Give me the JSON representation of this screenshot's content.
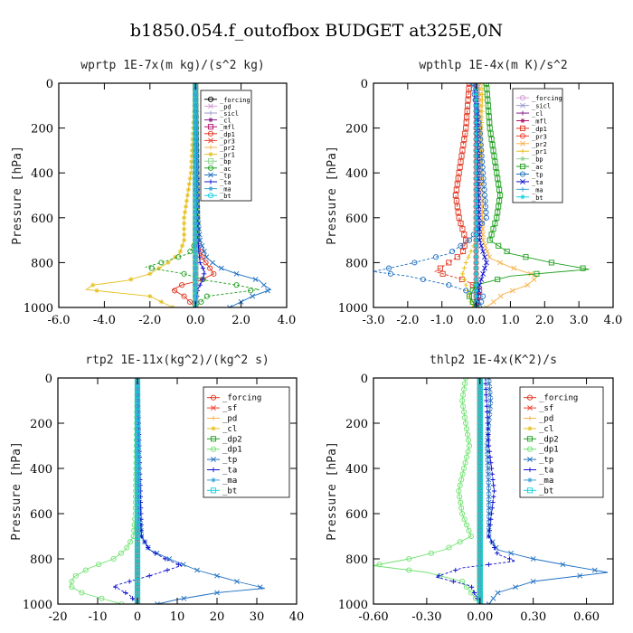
{
  "figure": {
    "title": "b1850.054.f_outofbox  BUDGET at325E,0N"
  },
  "chart_data": [
    {
      "type": "line",
      "title": "wprtp   1E-7x(m kg)/(s^2 kg)",
      "ylabel": "Pressure [hPa]",
      "xlim": [
        -6.0,
        4.0
      ],
      "ylim": [
        1000,
        0
      ],
      "y_reversed": true,
      "xticks": [
        "-6.0",
        "-4.0",
        "-2.0",
        "0.0",
        "2.0",
        "4.0"
      ],
      "xtick_values": [
        -6,
        -4,
        -2,
        0,
        2,
        4
      ],
      "yticks": [
        "0",
        "200",
        "400",
        "600",
        "800",
        "1000"
      ],
      "ytick_values": [
        0,
        200,
        400,
        600,
        800,
        1000
      ],
      "legend_position": "top-right",
      "series": [
        {
          "name": "_forcing",
          "color": "#000000",
          "y": [
            0,
            200,
            400,
            600,
            800,
            1000
          ],
          "values": [
            0,
            0,
            0,
            0,
            0,
            0
          ]
        },
        {
          "name": "_pd",
          "color": "#d59ad5",
          "y": [
            0,
            1000
          ],
          "values": [
            0,
            0
          ]
        },
        {
          "name": "_sicl",
          "color": "#9a9acd",
          "y": [
            0,
            1000
          ],
          "values": [
            0,
            0
          ]
        },
        {
          "name": "_cl",
          "color": "#8a1d8a",
          "y": [
            0,
            1000
          ],
          "values": [
            0,
            0
          ]
        },
        {
          "name": "_mfl",
          "color": "#b0176a",
          "y": [
            0,
            1000
          ],
          "values": [
            0,
            0
          ]
        },
        {
          "name": "_dp1",
          "color": "#e0341e",
          "y": [
            0,
            700,
            780,
            820,
            850,
            880,
            900,
            920,
            950,
            1000
          ],
          "values": [
            0,
            0.1,
            0.3,
            0.6,
            0.8,
            0.2,
            -0.6,
            -1.0,
            -0.5,
            0
          ]
        },
        {
          "name": "_pr3",
          "color": "#ee3e2e",
          "y": [
            0,
            1000
          ],
          "values": [
            0,
            0
          ]
        },
        {
          "name": "_pr2",
          "color": "#f7b24a",
          "y": [
            0,
            1000
          ],
          "values": [
            0,
            0
          ]
        },
        {
          "name": "_pr1",
          "color": "#e5c020",
          "y": [
            0,
            400,
            600,
            700,
            760,
            800,
            850,
            880,
            900,
            920,
            950,
            1000
          ],
          "values": [
            0,
            -0.2,
            -0.5,
            -0.5,
            -0.7,
            -1.2,
            -2.0,
            -3.0,
            -4.5,
            -4.8,
            -2.0,
            -1.0
          ]
        },
        {
          "name": "_bp",
          "color": "#8fd18f",
          "y": [
            0,
            1000
          ],
          "values": [
            0,
            0
          ]
        },
        {
          "name": "_ac",
          "color": "#1fa01f",
          "y": [
            0,
            700,
            760,
            800,
            820,
            850,
            880,
            900,
            920,
            950,
            1000
          ],
          "values": [
            0,
            0.1,
            -0.3,
            -1.5,
            -2.2,
            -0.5,
            0.5,
            1.8,
            2.8,
            0.5,
            0.0
          ]
        },
        {
          "name": "_tp",
          "color": "#1e6fc2",
          "y": [
            0,
            600,
            700,
            780,
            820,
            850,
            880,
            900,
            920,
            950,
            1000
          ],
          "values": [
            0,
            0.1,
            0.2,
            0.5,
            1.0,
            1.8,
            2.8,
            3.0,
            3.3,
            2.5,
            1.5
          ]
        },
        {
          "name": "_ta",
          "color": "#1010d0",
          "y": [
            0,
            700,
            800,
            840,
            880,
            920,
            1000
          ],
          "values": [
            0,
            0.1,
            0.2,
            0.4,
            0.3,
            0.1,
            0
          ]
        },
        {
          "name": "_ma",
          "color": "#3aa3d6",
          "y": [
            0,
            1000
          ],
          "values": [
            0,
            0
          ]
        },
        {
          "name": "_bt",
          "color": "#10d0e0",
          "y": [
            0,
            1000
          ],
          "values": [
            0,
            0
          ]
        }
      ]
    },
    {
      "type": "line",
      "title": "wpthlp   1E-4x(m K)/s^2",
      "ylabel": "Pressure [hPa]",
      "xlim": [
        -3.0,
        4.0
      ],
      "ylim": [
        1000,
        0
      ],
      "y_reversed": true,
      "xticks": [
        "-3.0",
        "-2.0",
        "-1.0",
        "0.0",
        "1.0",
        "2.0",
        "3.0",
        "4.0"
      ],
      "xtick_values": [
        -3,
        -2,
        -1,
        0,
        1,
        2,
        3,
        4
      ],
      "yticks": [
        "0",
        "200",
        "400",
        "600",
        "800",
        "1000"
      ],
      "ytick_values": [
        0,
        200,
        400,
        600,
        800,
        1000
      ],
      "legend_position": "top-right",
      "series": [
        {
          "name": "_forcing",
          "color": "#d59ad5",
          "y": [
            0,
            1000
          ],
          "values": [
            0,
            0
          ]
        },
        {
          "name": "_sicl",
          "color": "#9a9acd",
          "y": [
            0,
            1000
          ],
          "values": [
            0,
            0
          ]
        },
        {
          "name": "_cl",
          "color": "#8a1d8a",
          "y": [
            0,
            1000
          ],
          "values": [
            0,
            0
          ]
        },
        {
          "name": "_mfl",
          "color": "#b0176a",
          "y": [
            0,
            1000
          ],
          "values": [
            0,
            0
          ]
        },
        {
          "name": "_dp1",
          "color": "#e0341e",
          "y": [
            0,
            200,
            400,
            500,
            600,
            700,
            760,
            800,
            840,
            880,
            920,
            1000
          ],
          "values": [
            -0.2,
            -0.3,
            -0.5,
            -0.6,
            -0.5,
            -0.3,
            -0.4,
            -0.8,
            -1.2,
            -0.3,
            0.1,
            0.0
          ]
        },
        {
          "name": "_pr3",
          "color": "#ee3e2e",
          "y": [
            0,
            1000
          ],
          "values": [
            0,
            0
          ]
        },
        {
          "name": "_pr2",
          "color": "#f7b24a",
          "y": [
            0,
            700,
            780,
            820,
            860,
            900,
            940,
            1000
          ],
          "values": [
            0.1,
            0.2,
            0.4,
            1.0,
            1.8,
            1.5,
            0.8,
            0.3
          ]
        },
        {
          "name": "_pr1",
          "color": "#e5c020",
          "y": [
            0,
            400,
            700,
            800,
            850,
            900,
            1000
          ],
          "values": [
            0.2,
            0.1,
            0.0,
            -0.3,
            -0.4,
            -0.3,
            -0.1
          ]
        },
        {
          "name": "_bp",
          "color": "#8fd18f",
          "y": [
            0,
            1000
          ],
          "values": [
            0,
            0
          ]
        },
        {
          "name": "_ac",
          "color": "#1fa01f",
          "y": [
            0,
            200,
            400,
            500,
            600,
            700,
            760,
            800,
            830,
            860,
            900,
            950,
            1000
          ],
          "values": [
            0.3,
            0.4,
            0.6,
            0.7,
            0.6,
            0.4,
            1.0,
            2.2,
            3.3,
            1.0,
            0.0,
            -0.2,
            0.0
          ]
        },
        {
          "name": "_tp",
          "color": "#1e6fc2",
          "y": [
            0,
            200,
            400,
            600,
            700,
            760,
            800,
            840,
            860,
            900,
            950,
            1000
          ],
          "values": [
            -0.1,
            0.1,
            0.2,
            0.3,
            -0.2,
            -0.8,
            -1.8,
            -3.0,
            -2.0,
            -0.8,
            0.2,
            0.1
          ]
        },
        {
          "name": "_ta",
          "color": "#1010d0",
          "y": [
            0,
            700,
            800,
            850,
            900,
            1000
          ],
          "values": [
            0,
            0.1,
            0.3,
            0.2,
            0.1,
            0
          ]
        },
        {
          "name": "_ma",
          "color": "#3aa3d6",
          "y": [
            0,
            1000
          ],
          "values": [
            0,
            0
          ]
        },
        {
          "name": "_bt",
          "color": "#10d0e0",
          "y": [
            0,
            1000
          ],
          "values": [
            0,
            0
          ]
        }
      ]
    },
    {
      "type": "line",
      "title": "rtp2   1E-11x(kg^2)/(kg^2 s)",
      "ylabel": "Pressure [hPa]",
      "xlim": [
        -20,
        40
      ],
      "ylim": [
        1000,
        0
      ],
      "y_reversed": true,
      "xticks": [
        "-20",
        "-10",
        "0",
        "10",
        "20",
        "30",
        "40"
      ],
      "xtick_values": [
        -20,
        -10,
        0,
        10,
        20,
        30,
        40
      ],
      "yticks": [
        "0",
        "200",
        "400",
        "600",
        "800",
        "1000"
      ],
      "ytick_values": [
        0,
        200,
        400,
        600,
        800,
        1000
      ],
      "legend_position": "top-right",
      "series": [
        {
          "name": "_forcing",
          "color": "#e0341e",
          "y": [
            0,
            200,
            400,
            600,
            800,
            1000
          ],
          "values": [
            0,
            0,
            0,
            0,
            0,
            0
          ]
        },
        {
          "name": "_sf",
          "color": "#ee3e2e",
          "y": [
            0,
            1000
          ],
          "values": [
            0,
            0
          ]
        },
        {
          "name": "_pd",
          "color": "#f7b24a",
          "y": [
            0,
            1000
          ],
          "values": [
            0,
            0
          ]
        },
        {
          "name": "_cl",
          "color": "#e5c020",
          "y": [
            0,
            1000
          ],
          "values": [
            0,
            0
          ]
        },
        {
          "name": "_dp2",
          "color": "#1fa01f",
          "y": [
            0,
            1000
          ],
          "values": [
            0,
            0
          ]
        },
        {
          "name": "_dp1",
          "color": "#6ee26e",
          "y": [
            0,
            600,
            700,
            760,
            800,
            840,
            880,
            920,
            950,
            980,
            1000
          ],
          "values": [
            0,
            -0.5,
            -1.0,
            -3.0,
            -6.0,
            -12.0,
            -16.0,
            -17.0,
            -14.0,
            -8.0,
            -4.0
          ]
        },
        {
          "name": "_tp",
          "color": "#1e6fc2",
          "y": [
            0,
            600,
            700,
            760,
            800,
            850,
            900,
            930,
            950,
            980,
            1000
          ],
          "values": [
            0,
            0.5,
            1.0,
            3.0,
            8.0,
            15.0,
            25.0,
            32.0,
            20.0,
            10.0,
            5.0
          ]
        },
        {
          "name": "_ta",
          "color": "#1010d0",
          "y": [
            0,
            700,
            760,
            800,
            830,
            870,
            920,
            960,
            1000
          ],
          "values": [
            0,
            1.0,
            3.0,
            7.0,
            11.0,
            4.0,
            -6.0,
            -2.0,
            0.0
          ]
        },
        {
          "name": "_ma",
          "color": "#3aa3d6",
          "y": [
            0,
            1000
          ],
          "values": [
            0,
            0
          ]
        },
        {
          "name": "_bt",
          "color": "#10d0e0",
          "y": [
            0,
            1000
          ],
          "values": [
            0,
            0
          ]
        }
      ]
    },
    {
      "type": "line",
      "title": "thlp2   1E-4x(K^2)/s",
      "ylabel": "Pressure [hPa]",
      "xlim": [
        -0.6,
        0.75
      ],
      "ylim": [
        1000,
        0
      ],
      "y_reversed": true,
      "xticks": [
        "-0.60",
        "-0.30",
        "0.00",
        "0.30",
        "0.60"
      ],
      "xtick_values": [
        -0.6,
        -0.3,
        0.0,
        0.3,
        0.6
      ],
      "yticks": [
        "0",
        "200",
        "400",
        "600",
        "800",
        "1000"
      ],
      "ytick_values": [
        0,
        200,
        400,
        600,
        800,
        1000
      ],
      "legend_position": "top-right",
      "series": [
        {
          "name": "_forcing",
          "color": "#e0341e",
          "y": [
            0,
            200,
            400,
            600,
            800,
            1000
          ],
          "values": [
            0,
            0,
            0,
            0,
            0,
            0
          ]
        },
        {
          "name": "_sf",
          "color": "#ee3e2e",
          "y": [
            0,
            1000
          ],
          "values": [
            0,
            0
          ]
        },
        {
          "name": "_pd",
          "color": "#f7b24a",
          "y": [
            0,
            1000
          ],
          "values": [
            0,
            0
          ]
        },
        {
          "name": "_cl",
          "color": "#e5c020",
          "y": [
            0,
            1000
          ],
          "values": [
            0,
            0
          ]
        },
        {
          "name": "_dp2",
          "color": "#1fa01f",
          "y": [
            0,
            1000
          ],
          "values": [
            0,
            0
          ]
        },
        {
          "name": "_dp1",
          "color": "#6ee26e",
          "y": [
            0,
            100,
            300,
            500,
            600,
            700,
            760,
            800,
            830,
            860,
            900,
            950,
            1000
          ],
          "values": [
            -0.08,
            -0.1,
            -0.06,
            -0.12,
            -0.1,
            -0.05,
            -0.2,
            -0.4,
            -0.6,
            -0.3,
            -0.1,
            -0.05,
            0
          ]
        },
        {
          "name": "_tp",
          "color": "#1e6fc2",
          "y": [
            0,
            100,
            300,
            500,
            600,
            700,
            760,
            800,
            830,
            860,
            900,
            950,
            1000
          ],
          "values": [
            0.05,
            0.06,
            0.04,
            0.05,
            0.05,
            0.05,
            0.1,
            0.3,
            0.5,
            0.72,
            0.3,
            0.1,
            0.05
          ]
        },
        {
          "name": "_ta",
          "color": "#1010d0",
          "y": [
            0,
            300,
            500,
            700,
            780,
            810,
            840,
            880,
            920,
            1000
          ],
          "values": [
            0.03,
            0.05,
            0.08,
            0.05,
            0.1,
            0.2,
            -0.1,
            -0.25,
            -0.05,
            0
          ]
        },
        {
          "name": "_ma",
          "color": "#3aa3d6",
          "y": [
            0,
            1000
          ],
          "values": [
            0,
            0
          ]
        },
        {
          "name": "_bt",
          "color": "#10d0e0",
          "y": [
            0,
            1000
          ],
          "values": [
            0,
            0
          ]
        }
      ]
    }
  ]
}
